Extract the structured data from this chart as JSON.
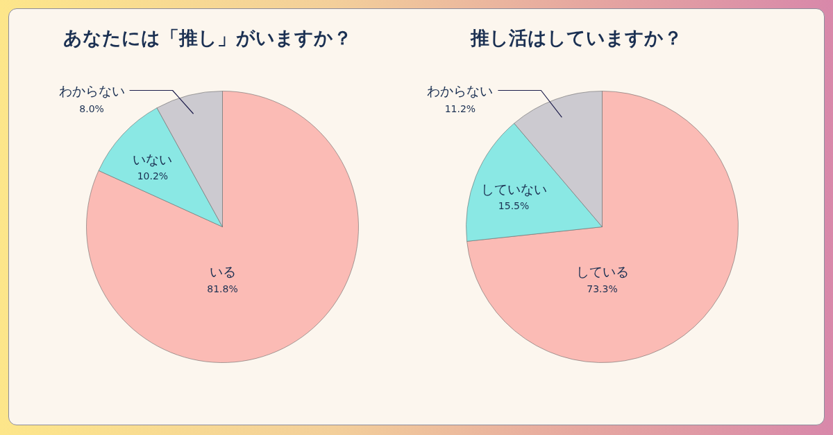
{
  "chart_data": [
    {
      "type": "pie",
      "title": "あなたには「推し」がいますか？",
      "categories": [
        "いる",
        "いない",
        "わからない"
      ],
      "values": [
        81.8,
        10.2,
        8.0
      ],
      "colors": [
        "#fbbbb5",
        "#8ae8e4",
        "#cccad0"
      ],
      "value_labels": [
        "81.8%",
        "10.2%",
        "8.0%"
      ]
    },
    {
      "type": "pie",
      "title": "推し活はしていますか？",
      "categories": [
        "している",
        "していない",
        "わからない"
      ],
      "values": [
        73.3,
        15.5,
        11.2
      ],
      "colors": [
        "#fbbbb5",
        "#8ae8e4",
        "#cccad0"
      ],
      "value_labels": [
        "73.3%",
        "15.5%",
        "11.2%"
      ]
    }
  ]
}
